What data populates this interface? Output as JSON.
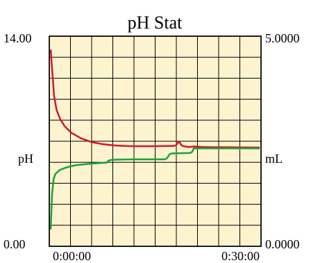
{
  "chart_data": {
    "type": "line",
    "title": "pH Stat",
    "x_ticks": [
      "0:00:00",
      "0:30:00"
    ],
    "x_range_seconds": [
      0,
      1800
    ],
    "y_left": {
      "label": "pH",
      "min_label": "0.00",
      "max_label": "14.00",
      "range": [
        0,
        14
      ]
    },
    "y_right": {
      "label": "mL",
      "min_label": "0.0000",
      "max_label": "5.0000",
      "range": [
        0,
        5
      ]
    },
    "grid": true,
    "background_color": "#fdf3cf",
    "series": [
      {
        "axis": "left",
        "color": "#d4152b",
        "points": [
          [
            0,
            13.1
          ],
          [
            15,
            11.5
          ],
          [
            30,
            10.0
          ],
          [
            50,
            9.1
          ],
          [
            80,
            8.5
          ],
          [
            120,
            8.0
          ],
          [
            180,
            7.55
          ],
          [
            260,
            7.2
          ],
          [
            350,
            6.95
          ],
          [
            450,
            6.8
          ],
          [
            550,
            6.72
          ],
          [
            650,
            6.68
          ],
          [
            760,
            6.67
          ],
          [
            860,
            6.67
          ],
          [
            980,
            6.68
          ],
          [
            1050,
            6.69
          ],
          [
            1080,
            6.72
          ],
          [
            1095,
            6.9
          ],
          [
            1110,
            6.95
          ],
          [
            1125,
            6.75
          ],
          [
            1145,
            6.66
          ],
          [
            1190,
            6.62
          ],
          [
            1240,
            6.65
          ],
          [
            1300,
            6.62
          ],
          [
            1400,
            6.6
          ],
          [
            1530,
            6.6
          ],
          [
            1800,
            6.58
          ]
        ]
      },
      {
        "axis": "right",
        "color": "#1aa23a",
        "points": [
          [
            0,
            0.4
          ],
          [
            12,
            1.25
          ],
          [
            25,
            1.6
          ],
          [
            40,
            1.72
          ],
          [
            80,
            1.82
          ],
          [
            140,
            1.88
          ],
          [
            220,
            1.93
          ],
          [
            320,
            1.96
          ],
          [
            420,
            1.98
          ],
          [
            480,
            1.99
          ],
          [
            500,
            2.04
          ],
          [
            530,
            2.06
          ],
          [
            700,
            2.07
          ],
          [
            980,
            2.07
          ],
          [
            1000,
            2.09
          ],
          [
            1025,
            2.19
          ],
          [
            1045,
            2.21
          ],
          [
            1200,
            2.22
          ],
          [
            1220,
            2.25
          ],
          [
            1232,
            2.33
          ],
          [
            1300,
            2.33
          ],
          [
            1600,
            2.33
          ],
          [
            1800,
            2.33
          ]
        ]
      }
    ]
  }
}
